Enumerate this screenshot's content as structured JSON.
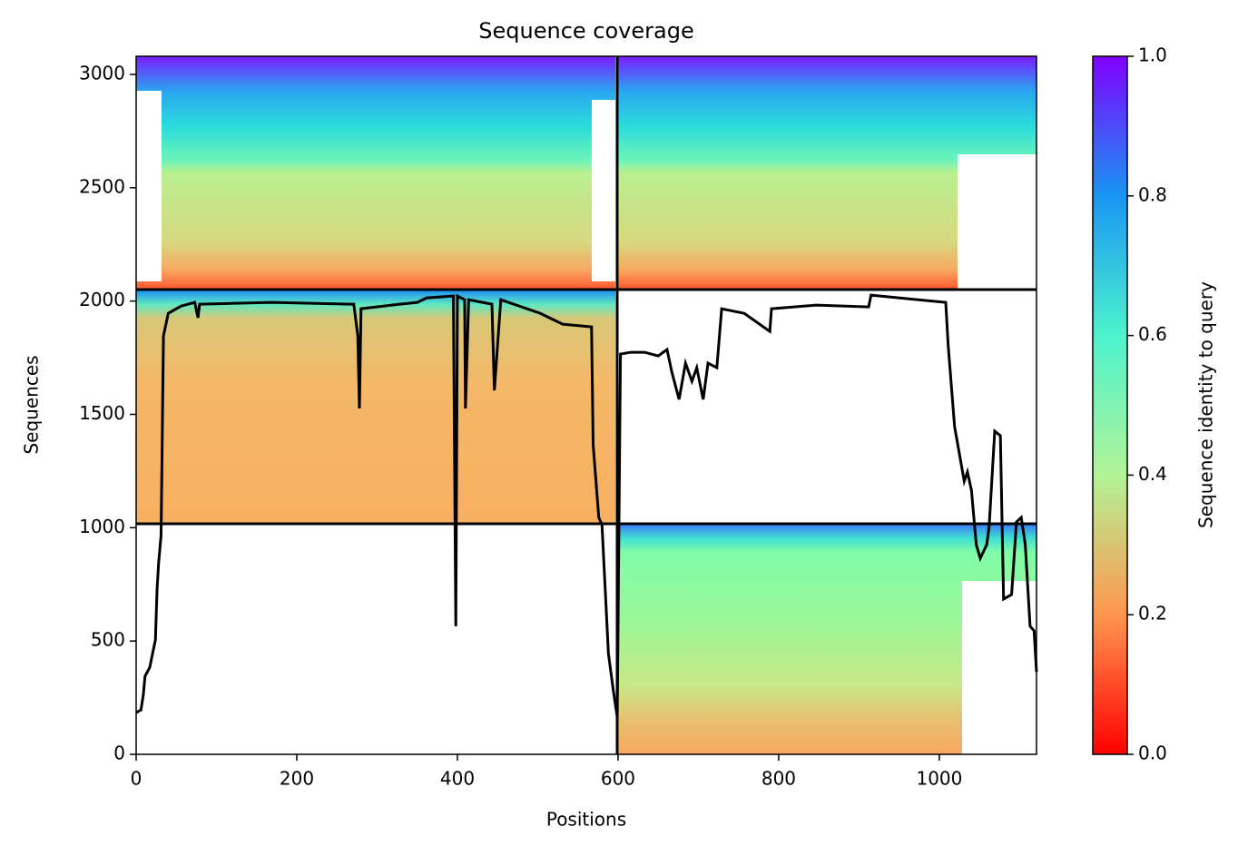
{
  "chart_data": {
    "type": "line",
    "title": "Sequence coverage",
    "xlabel": "Positions",
    "ylabel": "Sequences",
    "color": "#000000",
    "xlim": [
      0,
      1121
    ],
    "ylim": [
      0,
      3080
    ],
    "xticks": [
      0,
      200,
      400,
      600,
      800,
      1000
    ],
    "yticks": [
      0,
      500,
      1000,
      1500,
      2000,
      2500,
      3000
    ],
    "x": [
      0,
      6,
      9,
      11,
      17,
      20,
      24,
      26,
      28,
      31,
      32,
      34,
      40,
      56,
      73,
      77,
      79,
      169,
      271,
      276,
      278,
      280,
      328,
      350,
      362,
      395,
      398,
      400,
      409,
      410,
      414,
      443,
      446,
      454,
      503,
      531,
      567,
      569,
      576,
      580,
      588,
      594,
      599,
      603,
      616,
      633,
      650,
      661,
      667,
      676,
      684,
      692,
      698,
      706,
      712,
      723,
      729,
      757,
      789,
      791,
      847,
      912,
      915,
      1008,
      1011,
      1019,
      1024,
      1031,
      1035,
      1040,
      1046,
      1051,
      1059,
      1062,
      1069,
      1076,
      1080,
      1090,
      1096,
      1102,
      1107,
      1113,
      1118,
      1121
    ],
    "values": [
      184,
      196,
      264,
      344,
      384,
      437,
      505,
      725,
      845,
      965,
      1246,
      1846,
      1946,
      1978,
      1994,
      1926,
      1986,
      1994,
      1986,
      1846,
      1526,
      1966,
      1986,
      1994,
      2014,
      2022,
      565,
      2022,
      2006,
      1526,
      2006,
      1986,
      1606,
      2006,
      1946,
      1898,
      1886,
      1366,
      1045,
      1013,
      445,
      284,
      164,
      1766,
      1774,
      1774,
      1758,
      1786,
      1686,
      1566,
      1726,
      1646,
      1706,
      1566,
      1726,
      1706,
      1966,
      1946,
      1866,
      1966,
      1982,
      1974,
      2026,
      1994,
      1806,
      1446,
      1346,
      1205,
      1246,
      1165,
      925,
      865,
      925,
      1005,
      1426,
      1406,
      685,
      705,
      1025,
      1045,
      925,
      565,
      545,
      364
    ],
    "colorbar": {
      "label": "Sequence identity to query",
      "lim": [
        0,
        1
      ],
      "ticks": [
        {
          "value": 0,
          "label": "0.0"
        },
        {
          "value": 0.2,
          "label": "0.2"
        },
        {
          "value": 0.4,
          "label": "0.4"
        },
        {
          "value": 0.6,
          "label": "0.6"
        },
        {
          "value": 0.8,
          "label": "0.8"
        },
        {
          "value": 1,
          "label": "1.0"
        }
      ],
      "colors": [
        "#ff0000",
        "#ff964f",
        "#b2f396",
        "#4df3ce",
        "#1996f3",
        "#8000ff"
      ]
    }
  }
}
